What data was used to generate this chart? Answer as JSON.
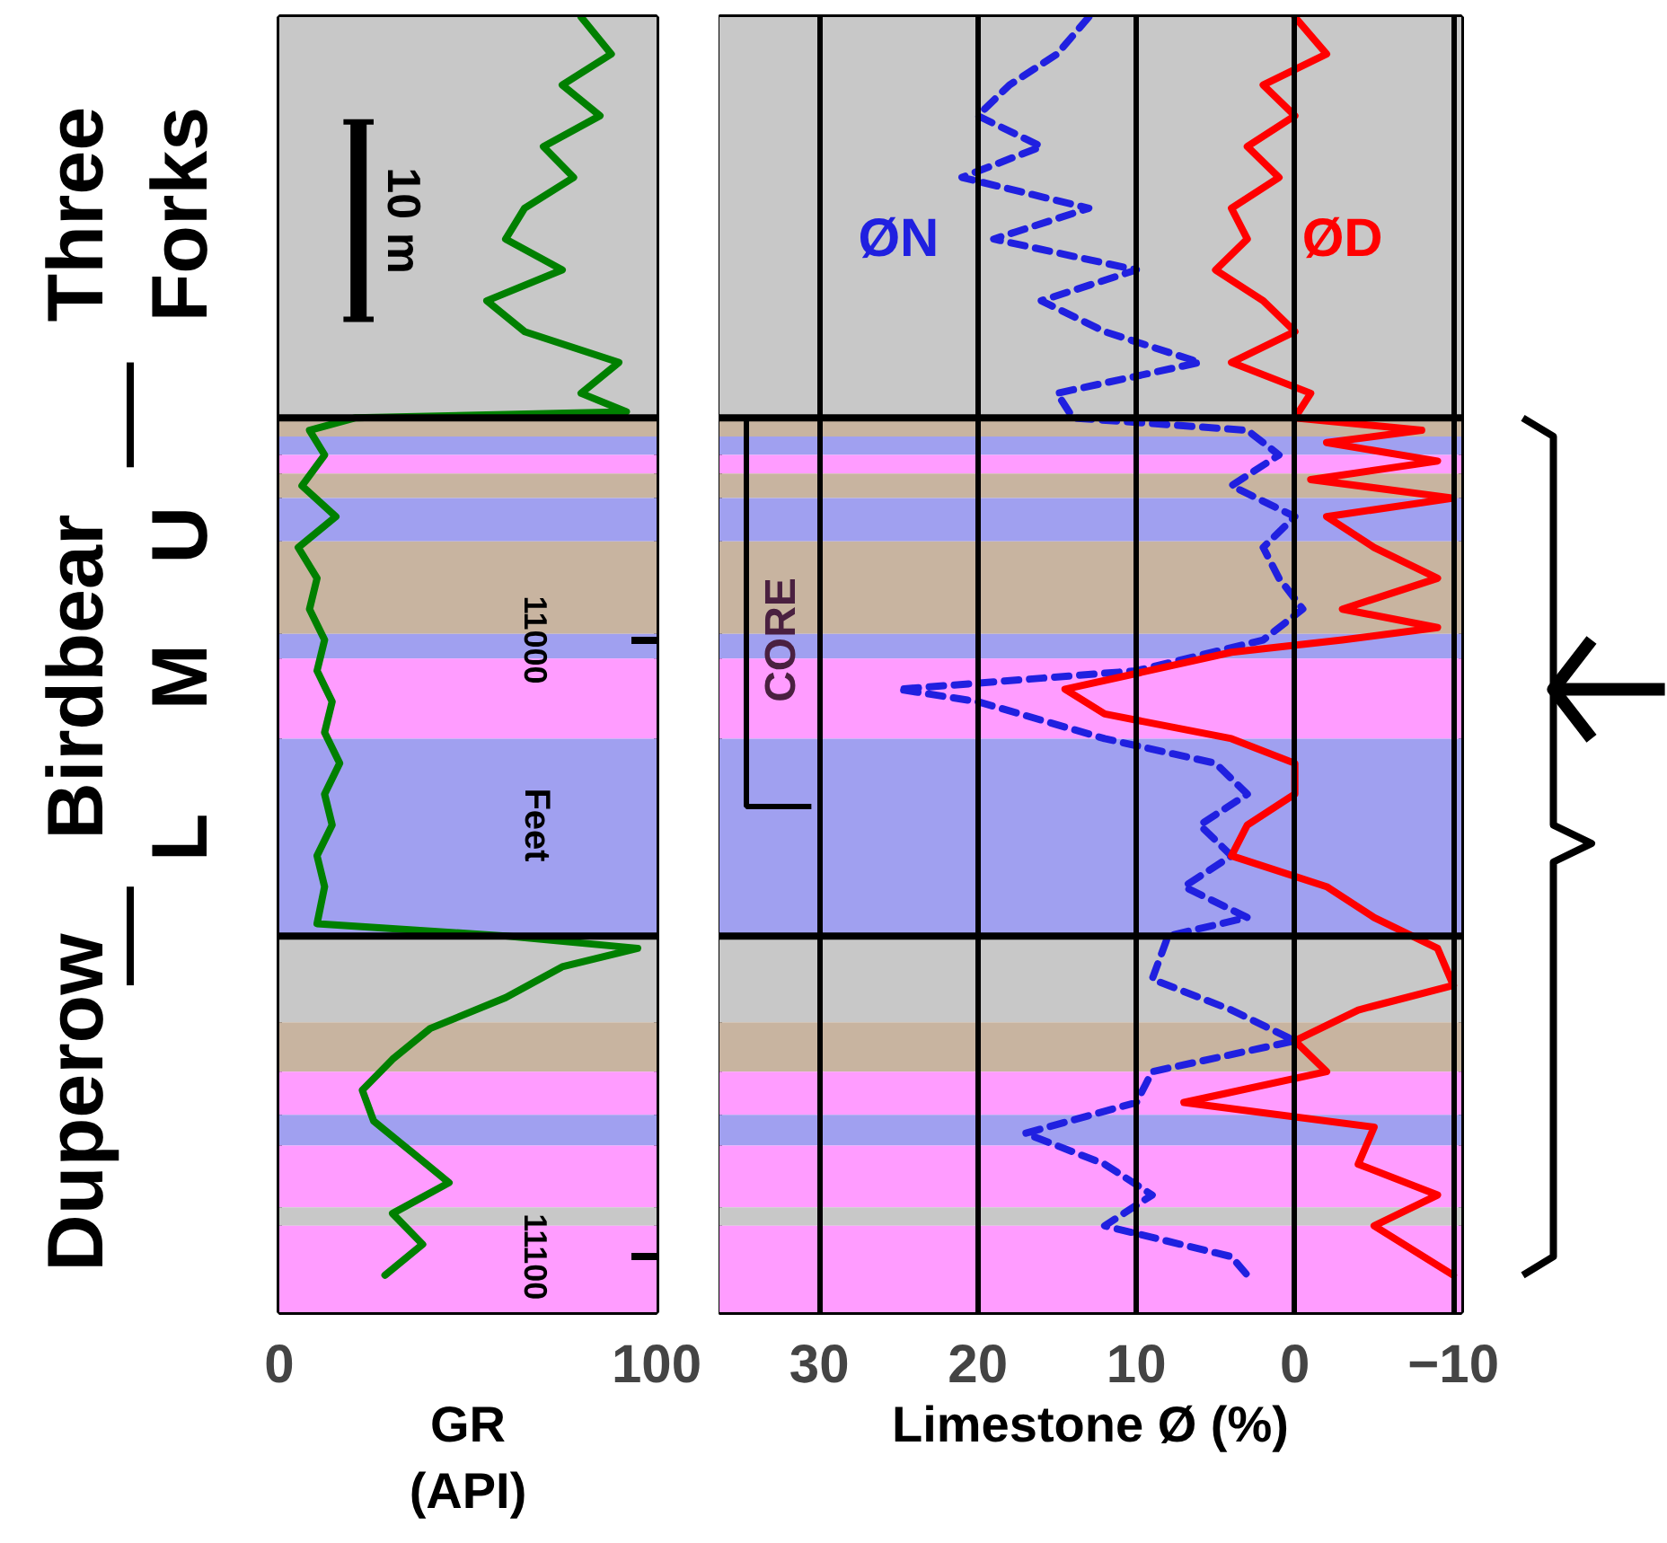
{
  "chart_data": [
    {
      "type": "line",
      "xlabel": "GR\n(API)",
      "xlim": [
        0,
        100
      ],
      "xticks": [
        0,
        100
      ],
      "ylim": [
        11109,
        10899
      ],
      "yticks": [
        11000,
        11100
      ],
      "grid": false,
      "series": [
        {
          "color": "#008000",
          "x": [
            80,
            88,
            75,
            85,
            70,
            78,
            65,
            60,
            75,
            55,
            65,
            90,
            80,
            92,
            20,
            8,
            12,
            6,
            15,
            5,
            10,
            8,
            12,
            10,
            14,
            12,
            16,
            12,
            14,
            10,
            12,
            10,
            60,
            95,
            75,
            60,
            40,
            30,
            22,
            25,
            35,
            45,
            30,
            38,
            28
          ],
          "values": [
            10899,
            10905,
            10910,
            10915,
            10920,
            10925,
            10930,
            10935,
            10940,
            10945,
            10950,
            10955,
            10960,
            10963,
            10964,
            10966,
            10970,
            10975,
            10980,
            10985,
            10990,
            10995,
            11000,
            11005,
            11010,
            11015,
            11020,
            11025,
            11030,
            11035,
            11040,
            11046,
            11048,
            11050,
            11053,
            11058,
            11063,
            11068,
            11073,
            11078,
            11083,
            11088,
            11093,
            11098,
            11103
          ]
        }
      ],
      "bands": [
        {
          "axis": "y",
          "from": 10899,
          "to": 10964,
          "color": "#c8c8c8"
        },
        {
          "axis": "y",
          "from": 10964,
          "to": 10967,
          "color": "#c8b4a0"
        },
        {
          "axis": "y",
          "from": 10967,
          "to": 10970,
          "color": "#a0a0f0"
        },
        {
          "axis": "y",
          "from": 10970,
          "to": 10973,
          "color": "#ff9cff"
        },
        {
          "axis": "y",
          "from": 10973,
          "to": 10977,
          "color": "#c8b4a0"
        },
        {
          "axis": "y",
          "from": 10977,
          "to": 10984,
          "color": "#a0a0f0"
        },
        {
          "axis": "y",
          "from": 10984,
          "to": 10999,
          "color": "#c8b4a0"
        },
        {
          "axis": "y",
          "from": 10999,
          "to": 11003,
          "color": "#a0a0f0"
        },
        {
          "axis": "y",
          "from": 11003,
          "to": 11016,
          "color": "#ff9cff"
        },
        {
          "axis": "y",
          "from": 11016,
          "to": 11048,
          "color": "#a0a0f0"
        },
        {
          "axis": "y",
          "from": 11048,
          "to": 11062,
          "color": "#c8c8c8"
        },
        {
          "axis": "y",
          "from": 11062,
          "to": 11070,
          "color": "#c8b4a0"
        },
        {
          "axis": "y",
          "from": 11070,
          "to": 11077,
          "color": "#ff9cff"
        },
        {
          "axis": "y",
          "from": 11077,
          "to": 11082,
          "color": "#a0a0f0"
        },
        {
          "axis": "y",
          "from": 11082,
          "to": 11092,
          "color": "#ff9cff"
        },
        {
          "axis": "y",
          "from": 11092,
          "to": 11095,
          "color": "#c8c8c8"
        },
        {
          "axis": "y",
          "from": 11095,
          "to": 11109,
          "color": "#ff9cff"
        }
      ],
      "ref_lines": [
        {
          "axis": "y",
          "value": 10964,
          "color": "#000000"
        },
        {
          "axis": "y",
          "value": 11048,
          "color": "#000000"
        }
      ],
      "annotations": [
        "Three Forks",
        "Birdbear",
        "Duperow",
        "U",
        "M",
        "L",
        "10 m",
        "Feet"
      ]
    },
    {
      "type": "line",
      "xlabel": "Limestone Ø (%)",
      "xlim": [
        36.3,
        -10.5
      ],
      "xticks": [
        30,
        20,
        10,
        0,
        -10
      ],
      "ylim": [
        11109,
        10899
      ],
      "tick_labels": "x",
      "grid": "x",
      "series": [
        {
          "name": "ØN",
          "color": "#2020e0",
          "line_style": "dashed",
          "x": [
            13,
            15,
            18,
            20,
            16,
            21,
            13,
            19,
            10,
            16,
            12,
            6,
            15,
            14,
            3,
            1,
            4,
            0,
            2,
            1,
            -0.5,
            2,
            10,
            25,
            20,
            16,
            12,
            5,
            3,
            6,
            4,
            7,
            3,
            8,
            9,
            4,
            0,
            9,
            10,
            17,
            12,
            9,
            12,
            4,
            3
          ],
          "values": [
            10899,
            10905,
            10910,
            10915,
            10920,
            10925,
            10930,
            10935,
            10940,
            10945,
            10950,
            10955,
            10960,
            10964,
            10966,
            10970,
            10975,
            10980,
            10985,
            10990,
            10995,
            11000,
            11005,
            11008,
            11010,
            11013,
            11016,
            11020,
            11025,
            11030,
            11035,
            11040,
            11045,
            11048,
            11055,
            11060,
            11065,
            11070,
            11075,
            11080,
            11085,
            11090,
            11095,
            11100,
            11103
          ]
        },
        {
          "name": "ØD",
          "color": "#ff0000",
          "line_style": "solid",
          "x": [
            0,
            -2,
            2,
            0,
            3,
            1,
            4,
            3,
            5,
            2,
            0,
            4,
            -1,
            0,
            -8,
            -2,
            -9,
            -1,
            -10,
            -2,
            -5,
            -9,
            -3,
            -9,
            -3,
            4,
            14.5,
            12,
            4,
            0,
            0,
            3,
            4,
            -2,
            -5,
            -9,
            -10,
            -4,
            0,
            -2,
            7,
            -5,
            -4,
            -9,
            -5,
            -10
          ],
          "values": [
            10899,
            10905,
            10910,
            10915,
            10920,
            10925,
            10930,
            10935,
            10940,
            10945,
            10950,
            10955,
            10960,
            10964,
            10966,
            10968,
            10971,
            10974,
            10977,
            10980,
            10985,
            10990,
            10995,
            10998,
            11000,
            11002,
            11008,
            11012,
            11016,
            11020,
            11025,
            11030,
            11035,
            11040,
            11045,
            11050,
            11056,
            11060,
            11065,
            11070,
            11075,
            11079,
            11085,
            11090,
            11095,
            11103
          ]
        }
      ],
      "bands": [
        {
          "axis": "y",
          "from": 10899,
          "to": 10964,
          "color": "#c8c8c8"
        },
        {
          "axis": "y",
          "from": 10964,
          "to": 10967,
          "color": "#c8b4a0"
        },
        {
          "axis": "y",
          "from": 10967,
          "to": 10970,
          "color": "#a0a0f0"
        },
        {
          "axis": "y",
          "from": 10970,
          "to": 10973,
          "color": "#ff9cff"
        },
        {
          "axis": "y",
          "from": 10973,
          "to": 10977,
          "color": "#c8b4a0"
        },
        {
          "axis": "y",
          "from": 10977,
          "to": 10984,
          "color": "#a0a0f0"
        },
        {
          "axis": "y",
          "from": 10984,
          "to": 10999,
          "color": "#c8b4a0"
        },
        {
          "axis": "y",
          "from": 10999,
          "to": 11003,
          "color": "#a0a0f0"
        },
        {
          "axis": "y",
          "from": 11003,
          "to": 11016,
          "color": "#ff9cff"
        },
        {
          "axis": "y",
          "from": 11016,
          "to": 11048,
          "color": "#a0a0f0"
        },
        {
          "axis": "y",
          "from": 11048,
          "to": 11062,
          "color": "#c8c8c8"
        },
        {
          "axis": "y",
          "from": 11062,
          "to": 11070,
          "color": "#c8b4a0"
        },
        {
          "axis": "y",
          "from": 11070,
          "to": 11077,
          "color": "#ff9cff"
        },
        {
          "axis": "y",
          "from": 11077,
          "to": 11082,
          "color": "#a0a0f0"
        },
        {
          "axis": "y",
          "from": 11082,
          "to": 11092,
          "color": "#ff9cff"
        },
        {
          "axis": "y",
          "from": 11092,
          "to": 11095,
          "color": "#c8c8c8"
        },
        {
          "axis": "y",
          "from": 11095,
          "to": 11109,
          "color": "#ff9cff"
        }
      ],
      "ref_lines": [
        {
          "axis": "y",
          "value": 10964,
          "color": "#000000"
        },
        {
          "axis": "y",
          "value": 11048,
          "color": "#000000"
        }
      ],
      "annotations": [
        "CORE"
      ]
    }
  ]
}
